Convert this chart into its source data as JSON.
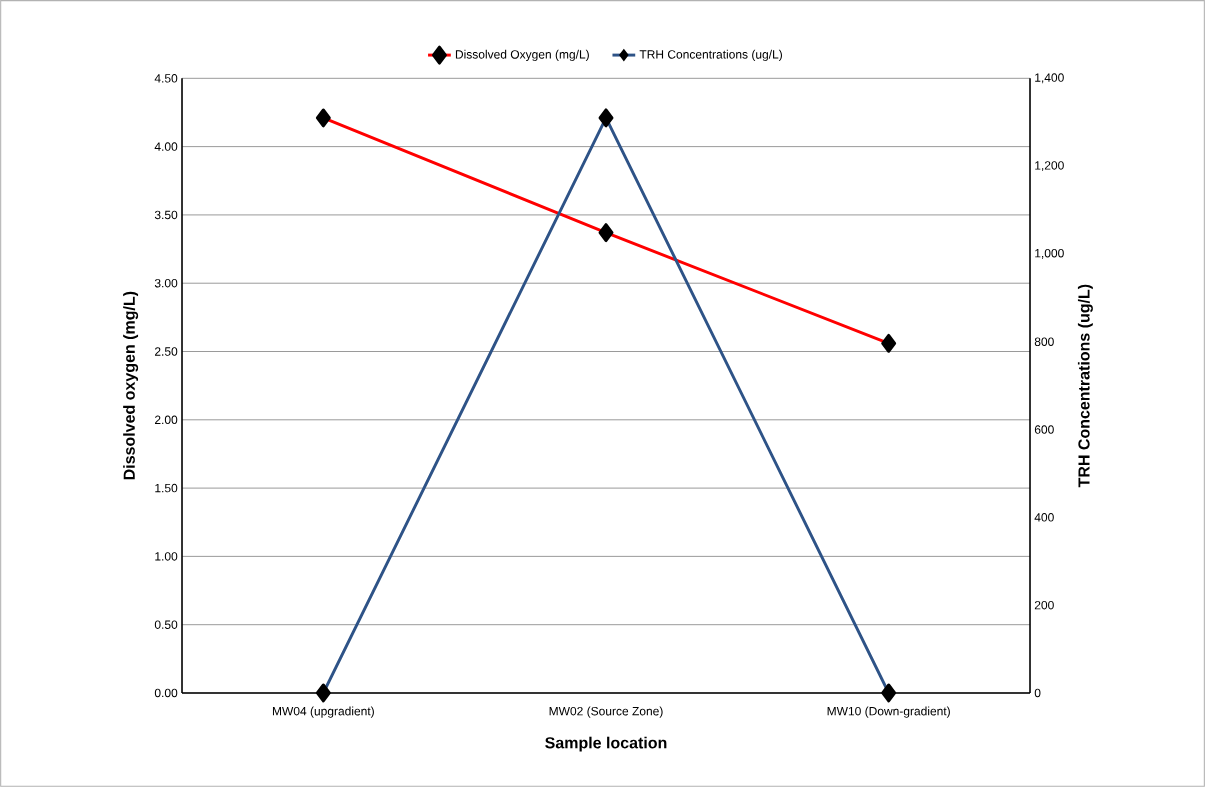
{
  "chart_data": {
    "type": "line",
    "xlabel": "Sample location",
    "ylabel": "Dissolved oxygen (mg/L)",
    "y2label": "TRH Concentrations (ug/L)",
    "categories": [
      "MW04 (upgradient)",
      "MW02 (Source Zone)",
      "MW10 (Down-gradient)"
    ],
    "series": [
      {
        "name": "Dissolved Oxygen (mg/L)",
        "color": "#ff0000",
        "values": [
          4.21,
          3.37,
          2.56
        ]
      },
      {
        "name": "TRH Concentrations (ug/L)",
        "color": "#2e5387",
        "axis": "y2",
        "values": [
          0,
          1310,
          0
        ]
      }
    ],
    "ylim": [
      0,
      4.5
    ],
    "yticks": [
      {
        "value": 0,
        "label": "0.00"
      },
      {
        "value": 0.5,
        "label": "0.50"
      },
      {
        "value": 1,
        "label": "1.00"
      },
      {
        "value": 1.5,
        "label": "1.50"
      },
      {
        "value": 2,
        "label": "2.00"
      },
      {
        "value": 2.5,
        "label": "2.50"
      },
      {
        "value": 3,
        "label": "3.00"
      },
      {
        "value": 3.5,
        "label": "3.50"
      },
      {
        "value": 4,
        "label": "4.00"
      },
      {
        "value": 4.5,
        "label": "4.50"
      }
    ],
    "y2lim": [
      0,
      1400
    ],
    "y2ticks": [
      0,
      200,
      400,
      600,
      800,
      {
        "value": 1000,
        "label": "1,000"
      },
      {
        "value": 1200,
        "label": "1,200"
      },
      {
        "value": 1400,
        "label": "1,400"
      }
    ],
    "grid": "y",
    "legend": "top",
    "marker": "diamond",
    "line_style": "solid"
  }
}
